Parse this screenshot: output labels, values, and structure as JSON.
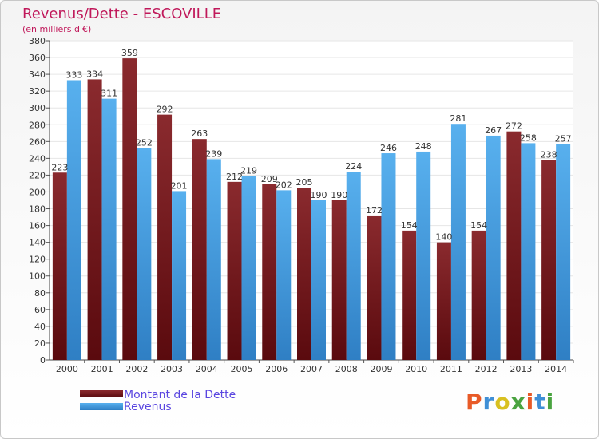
{
  "chart_data": {
    "type": "bar",
    "title": "Revenus/Dette - ESCOVILLE",
    "subtitle": "(en milliers d'€)",
    "categories": [
      "2000",
      "2001",
      "2002",
      "2003",
      "2004",
      "2005",
      "2006",
      "2007",
      "2008",
      "2009",
      "2010",
      "2011",
      "2012",
      "2013",
      "2014"
    ],
    "series": [
      {
        "name": "Montant de la Dette",
        "values": [
          223,
          334,
          359,
          292,
          263,
          212,
          209,
          205,
          190,
          172,
          154,
          140,
          154,
          272,
          238
        ]
      },
      {
        "name": "Revenus",
        "values": [
          333,
          311,
          252,
          201,
          239,
          219,
          202,
          190,
          224,
          246,
          248,
          281,
          267,
          258,
          257
        ]
      }
    ],
    "ylim": [
      0,
      380
    ],
    "yticks": [
      0,
      20,
      40,
      60,
      80,
      100,
      120,
      140,
      160,
      180,
      200,
      220,
      240,
      260,
      280,
      300,
      320,
      340,
      360,
      380
    ],
    "grid": true,
    "legend_position": "bottom-left",
    "colors": {
      "dette": "#7a1e22",
      "revenus": "#4aa3e6",
      "title": "#c0185a",
      "legend_text": "#5a46e0",
      "grid": "#e6e6e6"
    }
  },
  "branding": {
    "logo_text": "Proxiti",
    "logo_colors": [
      "#e85a27",
      "#3f8fd6",
      "#d8c020",
      "#4aa340",
      "#e85a27",
      "#3f8fd6",
      "#4aa340"
    ]
  }
}
